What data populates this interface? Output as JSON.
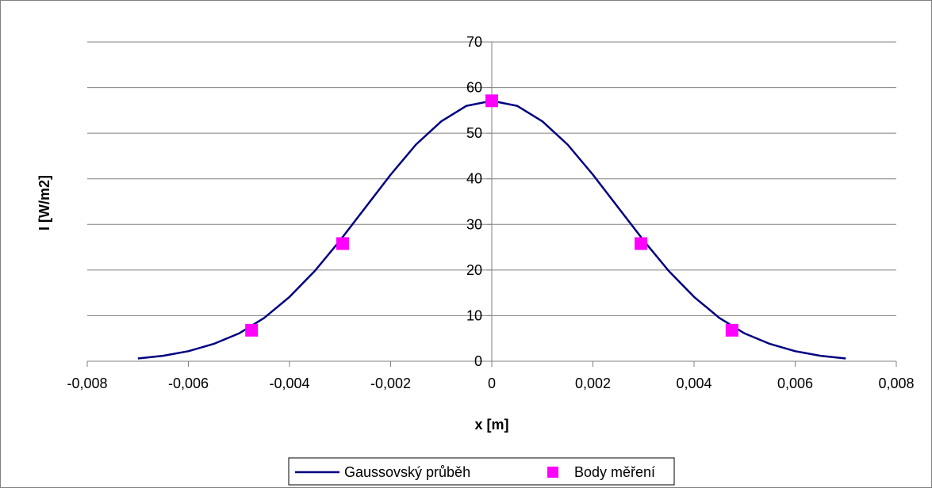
{
  "chart_data": {
    "type": "scatter",
    "xlabel": "x [m]",
    "ylabel": "I [W/m2]",
    "xlim": [
      -0.008,
      0.008
    ],
    "ylim": [
      0,
      70
    ],
    "x_ticks": [
      -0.008,
      -0.006,
      -0.004,
      -0.002,
      0,
      0.002,
      0.004,
      0.006,
      0.008
    ],
    "x_tick_labels": [
      "-0,008",
      "-0,006",
      "-0,004",
      "-0,002",
      "0",
      "0,002",
      "0,004",
      "0,006",
      "0,008"
    ],
    "y_ticks": [
      0,
      10,
      20,
      30,
      40,
      50,
      60,
      70
    ],
    "y_tick_labels": [
      "0",
      "10",
      "20",
      "30",
      "40",
      "50",
      "60",
      "70"
    ],
    "grid": "horizontal",
    "legend_position": "bottom",
    "series": [
      {
        "name": "Gaussovský průběh",
        "style": "line",
        "color": "#000080",
        "x": [
          -0.007,
          -0.0065,
          -0.006,
          -0.0055,
          -0.005,
          -0.0045,
          -0.004,
          -0.0035,
          -0.003,
          -0.0025,
          -0.002,
          -0.0015,
          -0.001,
          -0.0005,
          0,
          0.0005,
          0.001,
          0.0015,
          0.002,
          0.0025,
          0.003,
          0.0035,
          0.004,
          0.0045,
          0.005,
          0.0055,
          0.006,
          0.0065,
          0.007
        ],
        "y": [
          0.6,
          1.2,
          2.2,
          3.8,
          6.1,
          9.5,
          14.1,
          19.8,
          26.5,
          33.7,
          40.9,
          47.5,
          52.6,
          56.0,
          57.1,
          56.0,
          52.6,
          47.5,
          40.9,
          33.7,
          26.5,
          19.8,
          14.1,
          9.5,
          6.1,
          3.8,
          2.2,
          1.2,
          0.6
        ]
      },
      {
        "name": "Body měření",
        "style": "marker",
        "color": "#FF00FF",
        "x": [
          -0.00475,
          -0.00295,
          0,
          0.00295,
          0.00475
        ],
        "y": [
          6.8,
          25.8,
          57.1,
          25.8,
          6.8
        ]
      }
    ]
  }
}
